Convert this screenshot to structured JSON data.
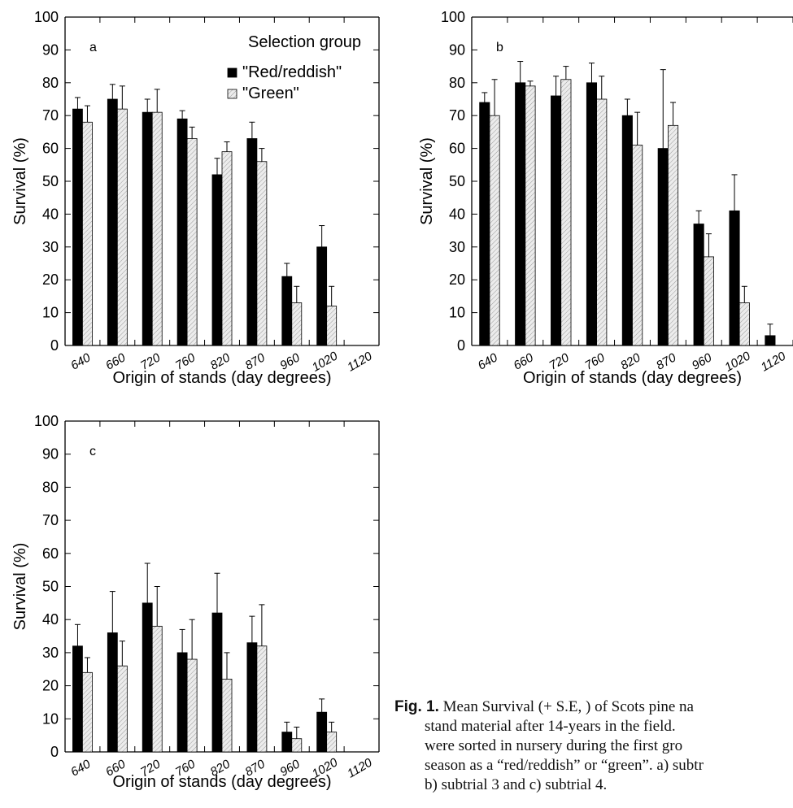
{
  "common": {
    "categories": [
      "640",
      "660",
      "720",
      "760",
      "820",
      "870",
      "960",
      "1020",
      "1120"
    ],
    "xlabel": "Origin of stands (day degrees)",
    "ylabel": "Survival (%)",
    "ylim": [
      0,
      100
    ],
    "yticks": [
      "0",
      "10",
      "20",
      "30",
      "40",
      "50",
      "60",
      "70",
      "80",
      "90",
      "100"
    ],
    "colors": {
      "red": "#000000",
      "green": "#e6e6e6",
      "axis": "#000000"
    }
  },
  "legend": {
    "title": "Selection group",
    "items": [
      "\"Red/reddish\"",
      "\"Green\""
    ]
  },
  "caption": {
    "label": "Fig. 1.",
    "line1": " Mean Survival (+ S.E, ) of Scots pine na",
    "line2": "stand material after 14-years in the field.",
    "line3": "were sorted in nursery during the first gro",
    "line4": "season as a “red/reddish” or “green”. a) subtr",
    "line5": "b) subtrial 3 and c) subtrial 4."
  },
  "chart_data": [
    {
      "type": "bar",
      "panel_label": "a",
      "categories": [
        "640",
        "660",
        "720",
        "760",
        "820",
        "870",
        "960",
        "1020",
        "1120"
      ],
      "series": [
        {
          "name": "\"Red/reddish\"",
          "values": [
            72,
            75,
            71,
            69,
            52,
            63,
            21,
            30,
            0
          ],
          "errors": [
            3.5,
            4.5,
            4,
            2.5,
            5,
            5,
            4,
            6.5,
            0
          ]
        },
        {
          "name": "\"Green\"",
          "values": [
            68,
            72,
            71,
            63,
            59,
            56,
            13,
            12,
            0
          ],
          "errors": [
            5,
            7,
            7,
            3.5,
            3,
            4,
            5,
            6,
            0
          ]
        }
      ],
      "xlabel": "Origin of stands (day degrees)",
      "ylabel": "Survival (%)",
      "ylim": [
        0,
        100
      ],
      "legend": "top-right"
    },
    {
      "type": "bar",
      "panel_label": "b",
      "categories": [
        "640",
        "660",
        "720",
        "760",
        "820",
        "870",
        "960",
        "1020",
        "1120"
      ],
      "series": [
        {
          "name": "\"Red/reddish\"",
          "values": [
            74,
            80,
            76,
            80,
            70,
            60,
            37,
            41,
            3
          ],
          "errors": [
            3,
            6.5,
            6,
            6,
            5,
            24,
            4,
            11,
            3.5
          ]
        },
        {
          "name": "\"Green\"",
          "values": [
            70,
            79,
            81,
            75,
            61,
            67,
            27,
            13,
            0
          ],
          "errors": [
            11,
            1.5,
            4,
            7,
            10,
            7,
            7,
            5,
            0
          ]
        }
      ],
      "xlabel": "Origin of stands (day degrees)",
      "ylabel": "Survival (%)",
      "ylim": [
        0,
        100
      ]
    },
    {
      "type": "bar",
      "panel_label": "c",
      "categories": [
        "640",
        "660",
        "720",
        "760",
        "820",
        "870",
        "960",
        "1020",
        "1120"
      ],
      "series": [
        {
          "name": "\"Red/reddish\"",
          "values": [
            32,
            36,
            45,
            30,
            42,
            33,
            6,
            12,
            0
          ],
          "errors": [
            6.5,
            12.5,
            12,
            7,
            12,
            8,
            3,
            4,
            0
          ]
        },
        {
          "name": "\"Green\"",
          "values": [
            24,
            26,
            38,
            28,
            22,
            32,
            4,
            6,
            0
          ],
          "errors": [
            4.5,
            7.5,
            12,
            12,
            8,
            12.5,
            3.5,
            3,
            0
          ]
        }
      ],
      "xlabel": "Origin of stands (day degrees)",
      "ylabel": "Survival (%)",
      "ylim": [
        0,
        100
      ]
    }
  ]
}
